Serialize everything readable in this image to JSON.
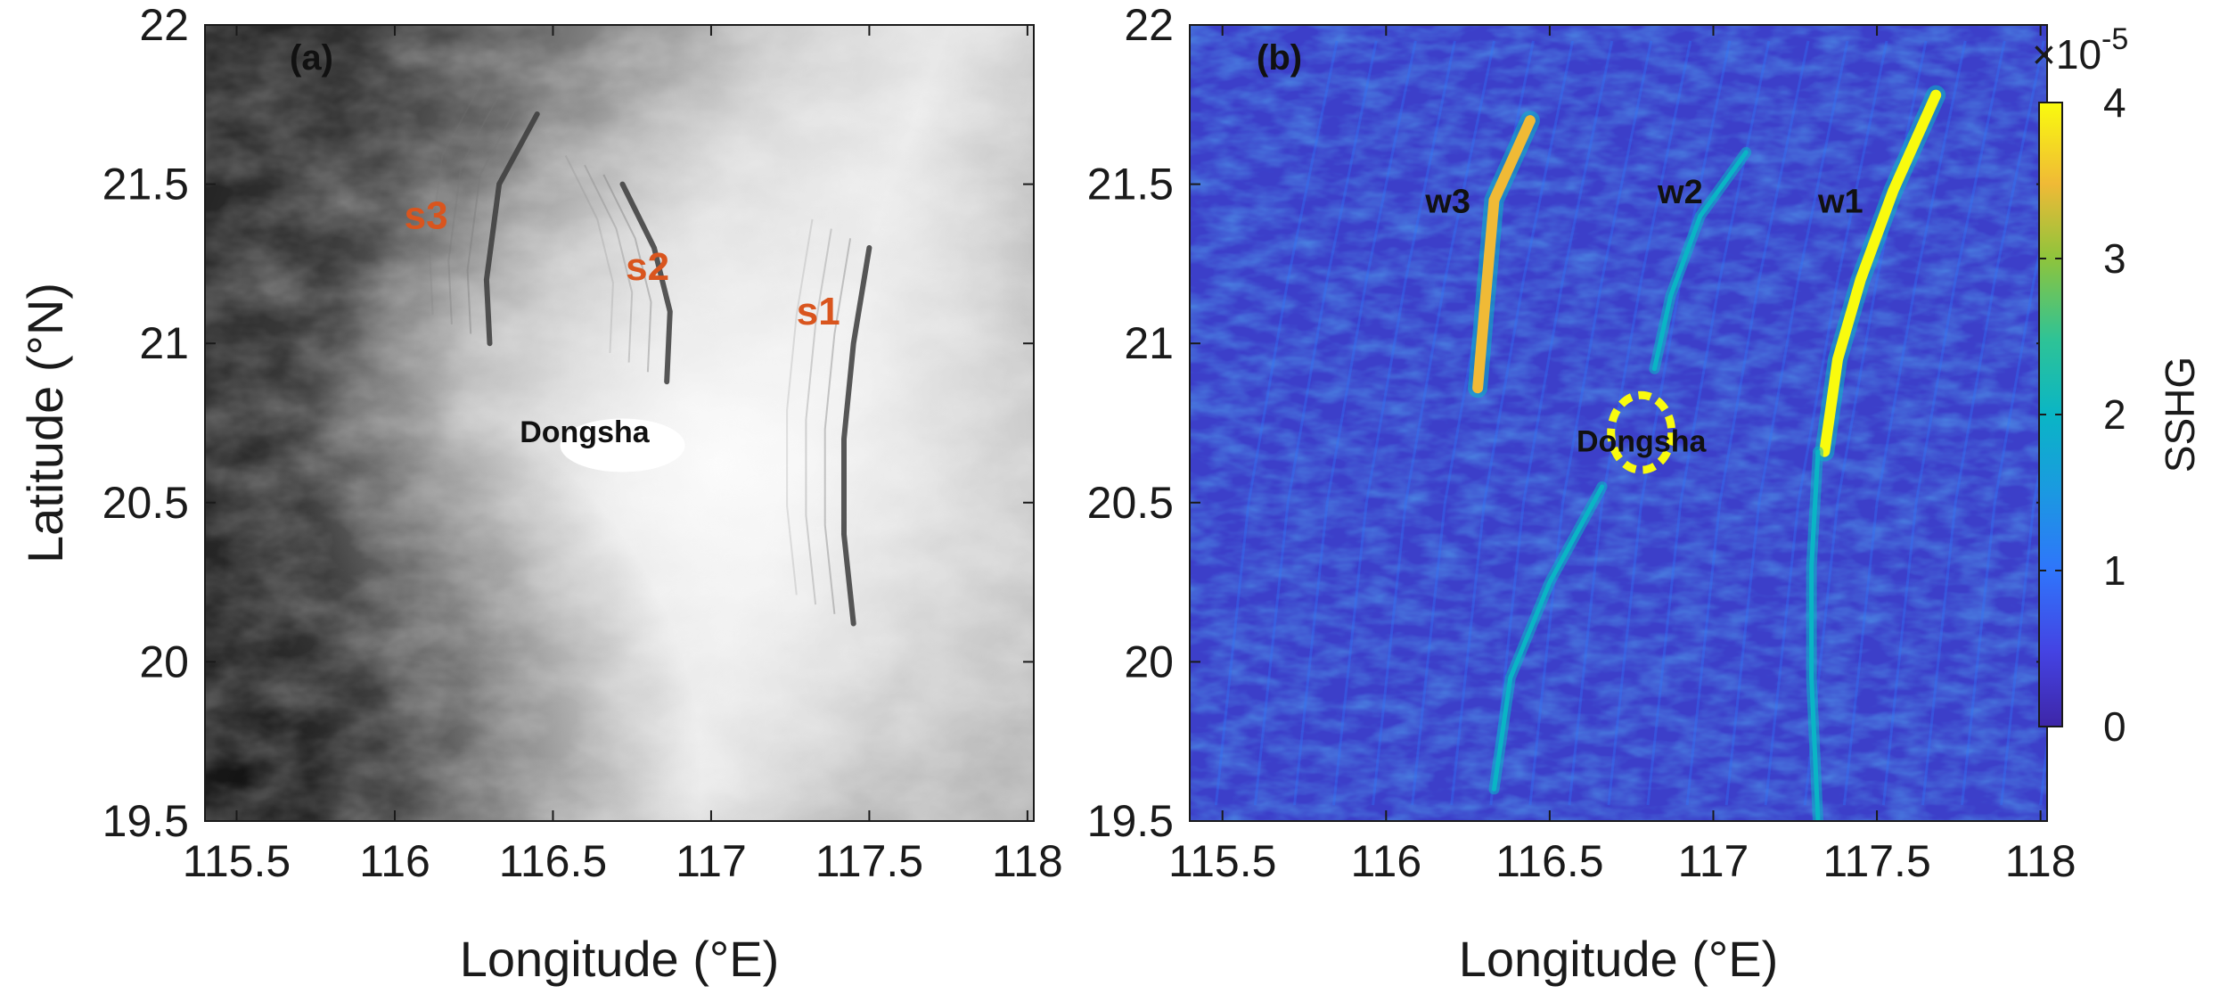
{
  "chart_data": [
    {
      "type": "heatmap",
      "panel_label": "(a)",
      "xlabel": "Longitude (°E)",
      "ylabel": "Latitude (°N)",
      "xlim": [
        115.4,
        118.02
      ],
      "ylim": [
        19.5,
        22
      ],
      "xticks": [
        115.5,
        116,
        116.5,
        117,
        117.5,
        118
      ],
      "yticks": [
        19.5,
        20,
        20.5,
        21,
        21.5,
        22
      ],
      "xtick_labels": [
        "115.5",
        "116",
        "116.5",
        "117",
        "117.5",
        "118"
      ],
      "ytick_labels": [
        "19.5",
        "20",
        "20.5",
        "21",
        "21.5",
        "22"
      ],
      "colormap": "grayscale",
      "annotations": [
        {
          "text": "s1",
          "lon": 117.27,
          "lat": 21.06
        },
        {
          "text": "s2",
          "lon": 116.73,
          "lat": 21.2
        },
        {
          "text": "s3",
          "lon": 116.03,
          "lat": 21.36
        },
        {
          "text": "Dongsha",
          "lon": 116.6,
          "lat": 20.69
        }
      ],
      "features": [
        {
          "name": "s1",
          "points": [
            [
              117.5,
              21.3
            ],
            [
              117.45,
              21.0
            ],
            [
              117.42,
              20.7
            ],
            [
              117.42,
              20.4
            ],
            [
              117.45,
              20.12
            ]
          ]
        },
        {
          "name": "s2",
          "points": [
            [
              116.72,
              21.5
            ],
            [
              116.82,
              21.3
            ],
            [
              116.87,
              21.1
            ],
            [
              116.86,
              20.88
            ]
          ]
        },
        {
          "name": "s3",
          "points": [
            [
              116.45,
              21.72
            ],
            [
              116.33,
              21.5
            ],
            [
              116.29,
              21.2
            ],
            [
              116.3,
              21.0
            ]
          ]
        }
      ]
    },
    {
      "type": "heatmap",
      "panel_label": "(b)",
      "xlabel": "Longitude (°E)",
      "xlim": [
        115.4,
        118.02
      ],
      "ylim": [
        19.5,
        22
      ],
      "xticks": [
        115.5,
        116,
        116.5,
        117,
        117.5,
        118
      ],
      "yticks": [
        19.5,
        20,
        20.5,
        21,
        21.5,
        22
      ],
      "xtick_labels": [
        "115.5",
        "116",
        "116.5",
        "117",
        "117.5",
        "118"
      ],
      "ytick_labels": [
        "19.5",
        "20",
        "20.5",
        "21",
        "21.5",
        "22"
      ],
      "colormap": "parula",
      "colorbar": {
        "label": "SSHG",
        "multiplier": "×10",
        "exponent": "-5",
        "range": [
          0,
          4
        ],
        "ticks": [
          0,
          1,
          2,
          3,
          4
        ],
        "tick_labels": [
          "0",
          "1",
          "2",
          "3",
          "4"
        ]
      },
      "annotations": [
        {
          "text": "w1",
          "lon": 117.32,
          "lat": 21.41
        },
        {
          "text": "w2",
          "lon": 116.83,
          "lat": 21.44
        },
        {
          "text": "w3",
          "lon": 116.12,
          "lat": 21.41
        },
        {
          "text": "Dongsha",
          "lon": 116.78,
          "lat": 20.66
        }
      ],
      "features": [
        {
          "name": "w1",
          "value": 4.0,
          "points": [
            [
              117.68,
              21.78
            ],
            [
              117.55,
              21.48
            ],
            [
              117.45,
              21.2
            ],
            [
              117.38,
              20.95
            ],
            [
              117.34,
              20.66
            ]
          ]
        },
        {
          "name": "w2",
          "value": 2.0,
          "points": [
            [
              117.1,
              21.6
            ],
            [
              116.96,
              21.4
            ],
            [
              116.87,
              21.15
            ],
            [
              116.82,
              20.92
            ]
          ]
        },
        {
          "name": "w3",
          "value": 3.5,
          "points": [
            [
              116.44,
              21.7
            ],
            [
              116.33,
              21.45
            ],
            [
              116.3,
              21.1
            ],
            [
              116.28,
              20.86
            ]
          ]
        },
        {
          "name": "w1-south",
          "value": 2.0,
          "points": [
            [
              117.32,
              20.66
            ],
            [
              117.3,
              20.3
            ],
            [
              117.3,
              19.95
            ],
            [
              117.32,
              19.5
            ]
          ]
        },
        {
          "name": "w2-south",
          "value": 1.8,
          "points": [
            [
              116.66,
              20.55
            ],
            [
              116.5,
              20.25
            ],
            [
              116.38,
              19.95
            ],
            [
              116.33,
              19.6
            ]
          ]
        }
      ]
    }
  ]
}
